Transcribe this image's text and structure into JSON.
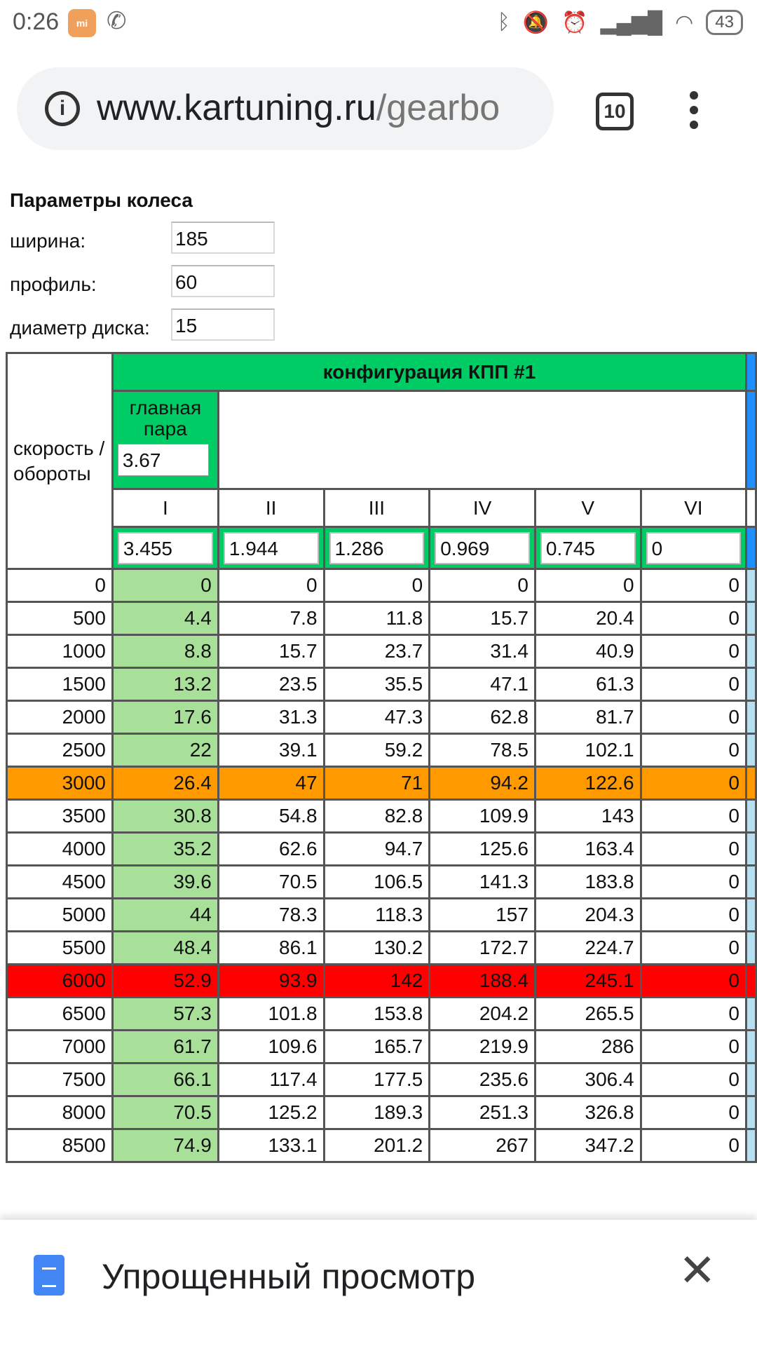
{
  "status_bar": {
    "time": "0:26",
    "battery": "43",
    "icons": [
      "mi-app-icon",
      "phone-call-icon",
      "bluetooth-icon",
      "mute-icon",
      "alarm-icon",
      "signal-icon",
      "wifi-icon",
      "battery-icon"
    ]
  },
  "browser": {
    "url_domain": "www.kartuning.ru",
    "url_path": "/gearbo",
    "tab_count": "10"
  },
  "wheel": {
    "title": "Параметры колеса",
    "width_label": "ширина:",
    "width_value": "185",
    "profile_label": "профиль:",
    "profile_value": "60",
    "rim_label": "диаметр диска:",
    "rim_value": "15"
  },
  "table": {
    "config_title": "конфигурация КПП #1",
    "speed_header": "скорость / обороты",
    "main_pair_label": "главная пара",
    "main_pair_value": "3.67",
    "gears": [
      "I",
      "II",
      "III",
      "IV",
      "V",
      "VI"
    ],
    "ratios": [
      "3.455",
      "1.944",
      "1.286",
      "0.969",
      "0.745",
      "0"
    ],
    "rows": [
      {
        "rpm": "0",
        "v": [
          "0",
          "0",
          "0",
          "0",
          "0",
          "0"
        ],
        "style": ""
      },
      {
        "rpm": "500",
        "v": [
          "4.4",
          "7.8",
          "11.8",
          "15.7",
          "20.4",
          "0"
        ],
        "style": ""
      },
      {
        "rpm": "1000",
        "v": [
          "8.8",
          "15.7",
          "23.7",
          "31.4",
          "40.9",
          "0"
        ],
        "style": ""
      },
      {
        "rpm": "1500",
        "v": [
          "13.2",
          "23.5",
          "35.5",
          "47.1",
          "61.3",
          "0"
        ],
        "style": ""
      },
      {
        "rpm": "2000",
        "v": [
          "17.6",
          "31.3",
          "47.3",
          "62.8",
          "81.7",
          "0"
        ],
        "style": ""
      },
      {
        "rpm": "2500",
        "v": [
          "22",
          "39.1",
          "59.2",
          "78.5",
          "102.1",
          "0"
        ],
        "style": ""
      },
      {
        "rpm": "3000",
        "v": [
          "26.4",
          "47",
          "71",
          "94.2",
          "122.6",
          "0"
        ],
        "style": "orange"
      },
      {
        "rpm": "3500",
        "v": [
          "30.8",
          "54.8",
          "82.8",
          "109.9",
          "143",
          "0"
        ],
        "style": ""
      },
      {
        "rpm": "4000",
        "v": [
          "35.2",
          "62.6",
          "94.7",
          "125.6",
          "163.4",
          "0"
        ],
        "style": ""
      },
      {
        "rpm": "4500",
        "v": [
          "39.6",
          "70.5",
          "106.5",
          "141.3",
          "183.8",
          "0"
        ],
        "style": ""
      },
      {
        "rpm": "5000",
        "v": [
          "44",
          "78.3",
          "118.3",
          "157",
          "204.3",
          "0"
        ],
        "style": ""
      },
      {
        "rpm": "5500",
        "v": [
          "48.4",
          "86.1",
          "130.2",
          "172.7",
          "224.7",
          "0"
        ],
        "style": ""
      },
      {
        "rpm": "6000",
        "v": [
          "52.9",
          "93.9",
          "142",
          "188.4",
          "245.1",
          "0"
        ],
        "style": "red"
      },
      {
        "rpm": "6500",
        "v": [
          "57.3",
          "101.8",
          "153.8",
          "204.2",
          "265.5",
          "0"
        ],
        "style": ""
      },
      {
        "rpm": "7000",
        "v": [
          "61.7",
          "109.6",
          "165.7",
          "219.9",
          "286",
          "0"
        ],
        "style": ""
      },
      {
        "rpm": "7500",
        "v": [
          "66.1",
          "117.4",
          "177.5",
          "235.6",
          "306.4",
          "0"
        ],
        "style": ""
      },
      {
        "rpm": "8000",
        "v": [
          "70.5",
          "125.2",
          "189.3",
          "251.3",
          "326.8",
          "0"
        ],
        "style": ""
      },
      {
        "rpm": "8500",
        "v": [
          "74.9",
          "133.1",
          "201.2",
          "267",
          "347.2",
          "0"
        ],
        "style": ""
      }
    ]
  },
  "bottom_sheet": {
    "title": "Упрощенный просмотр"
  },
  "colors": {
    "config_green": "#00cc66",
    "first_gear_green": "#a8e09a",
    "highlight_orange": "#ff9900",
    "highlight_red": "#ff0000",
    "next_config_blue": "#1e90ff"
  }
}
